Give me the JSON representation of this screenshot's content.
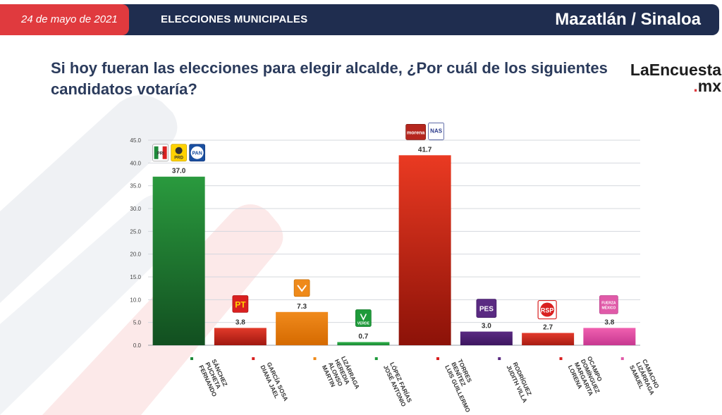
{
  "header": {
    "date": "24 de mayo de 2021",
    "topic": "ELECCIONES MUNICIPALES",
    "place": "Mazatlán / Sinaloa"
  },
  "question": "Si hoy fueran las elecciones para elegir alcalde, ¿Por cuál de los siguientes candidatos votaría?",
  "brand": {
    "name": "LaEncuesta",
    "suffix_dot": ".",
    "suffix": "mx"
  },
  "chart_data": {
    "type": "bar",
    "title": "",
    "xlabel": "",
    "ylabel": "",
    "ylim": [
      0,
      45
    ],
    "yticks": [
      "0.0",
      "5.0",
      "10.0",
      "15.0",
      "20.0",
      "25.0",
      "30.0",
      "35.0",
      "40.0",
      "45.0"
    ],
    "grid": true,
    "legend": "none",
    "categories": [
      "FERNANDO PUCHETA SÁNCHEZ",
      "DIANA JAEL GARCÍA SOSA",
      "MARTIN ALONSO HEREDIA LIZÁRRAGA",
      "JOSÉ ANTONIO LÓPEZ FARÍAS",
      "LUIS GUILLERMO BENÍTEZ TORRES",
      "JUDITH VILLA RODRÍGUEZ",
      "LORENA MARGARITA DOMÍNGUEZ OCAMPO",
      "SAMUEL LIZÁRRAGA CAMACHO"
    ],
    "category_lines": [
      [
        "FERNANDO",
        "PUCHETA",
        "SÁNCHEZ"
      ],
      [
        "DIANA JAEL",
        "GARCÍA SOSA"
      ],
      [
        "MARTIN",
        "ALONSO",
        "HEREDIA",
        "LIZÁRRAGA"
      ],
      [
        "JOSÉ ANTONIO",
        "LÓPEZ FARÍAS"
      ],
      [
        "LUIS GUILLERMO",
        "BENÍTEZ",
        "TORRES"
      ],
      [
        "JUDITH VILLA",
        "RODRÍGUEZ"
      ],
      [
        "LORENA",
        "MARGARITA",
        "DOMÍNGUEZ",
        "OCAMPO"
      ],
      [
        "SAMUEL",
        "LIZÁRRAGA",
        "CAMACHO"
      ]
    ],
    "values": [
      37.0,
      3.8,
      7.3,
      0.7,
      41.7,
      3.0,
      2.7,
      3.8
    ],
    "value_labels": [
      "37.0",
      "3.8",
      "7.3",
      "0.7",
      "41.7",
      "3.0",
      "2.7",
      "3.8"
    ],
    "bar_colors": [
      [
        "#2a9a3e",
        "#124f20"
      ],
      [
        "#e23a2a",
        "#a01810"
      ],
      [
        "#f08a1c",
        "#d56a00"
      ],
      [
        "#2eb04a",
        "#1a8a33"
      ],
      [
        "#ea3a22",
        "#8c1208"
      ],
      [
        "#5a2a82",
        "#3d1660"
      ],
      [
        "#e33a2c",
        "#a81c12"
      ],
      [
        "#f060b0",
        "#c73890"
      ]
    ],
    "marker_colors": [
      "#1e8a3a",
      "#d92020",
      "#ef8a1a",
      "#1e9a3a",
      "#d92020",
      "#5a2a82",
      "#d92020",
      "#e05aa8"
    ],
    "party_logos": [
      [
        "PRI",
        "PRD",
        "PAN"
      ],
      [
        "PT"
      ],
      [
        "MC"
      ],
      [
        "VERDE"
      ],
      [
        "morena",
        "NAS"
      ],
      [
        "PES"
      ],
      [
        "RSP"
      ],
      [
        "FUERZA MÉXICO"
      ]
    ]
  }
}
